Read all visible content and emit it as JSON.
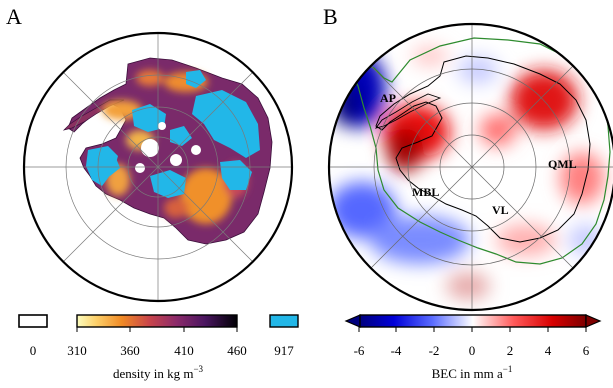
{
  "panels": {
    "a": {
      "letter": "A",
      "legend": {
        "zero_label": "0",
        "ticks": [
          "310",
          "360",
          "410",
          "460"
        ],
        "ice_label": "917",
        "title": "density in kg m",
        "title_exp": "−3"
      }
    },
    "b": {
      "letter": "B",
      "legend": {
        "ticks": [
          "-6",
          "-4",
          "-2",
          "0",
          "2",
          "4",
          "6"
        ],
        "title": "BEC in mm a",
        "title_exp": "−1"
      },
      "regions": {
        "ap": "AP",
        "mbl": "MBL",
        "vl": "VL",
        "qml": "QML"
      }
    }
  },
  "colors": {
    "snow_white": "#ffffff",
    "ice_cyan": "#22b7e8",
    "density_low": "#f8f48c",
    "density_high": "#000004",
    "bec_neg": "#00007e",
    "bec_pos": "#800000",
    "coastline": "#000000",
    "ice_shelf_contour": "#2e8b2e"
  }
}
